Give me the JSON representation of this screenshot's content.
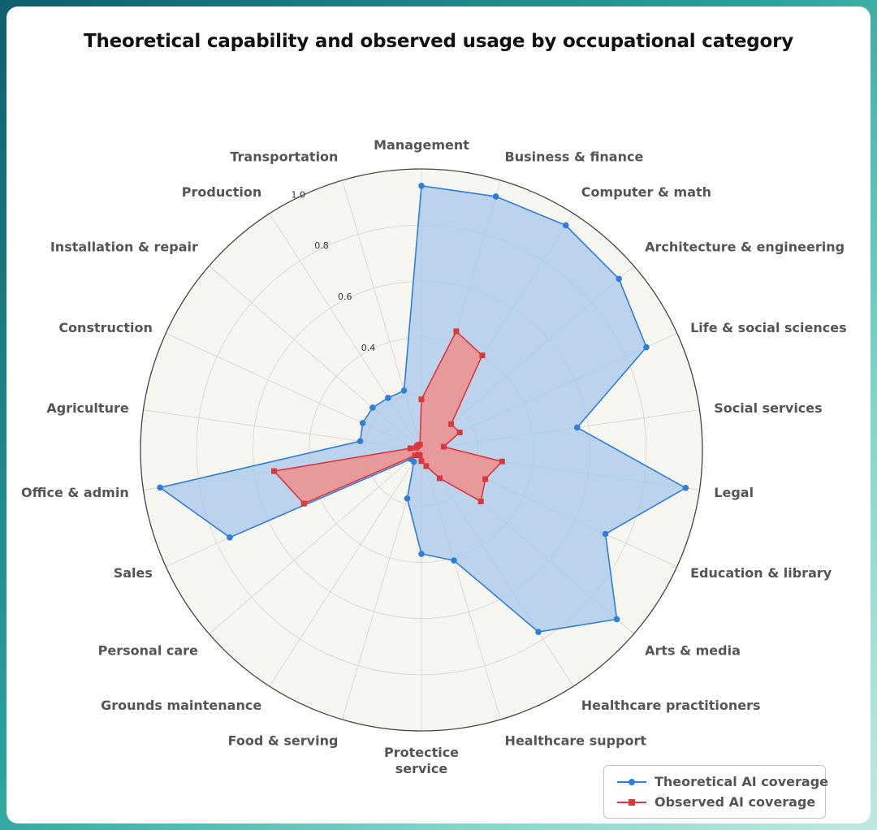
{
  "chart_data": {
    "type": "radar",
    "title": "Theoretical capability and observed usage by occupational category",
    "categories": [
      "Management",
      "Business & finance",
      "Computer & math",
      "Architecture & engineering",
      "Life & social sciences",
      "Social services",
      "Legal",
      "Education & library",
      "Arts & media",
      "Healthcare practitioners",
      "Healthcare support",
      "Protecticе service",
      "Food & serving",
      "Grounds maintenance",
      "Personal care",
      "Sales",
      "Office & admin",
      "Agriculture",
      "Construction",
      "Installation & repair",
      "Production",
      "Transportation"
    ],
    "radial_ticks": [
      0.4,
      0.6,
      0.8,
      1.0
    ],
    "rlim": [
      0,
      1.0
    ],
    "grid": true,
    "legend_position": "bottom-right",
    "series": [
      {
        "name": "Theoretical AI coverage",
        "color": "#2f7fd6",
        "fill": "#a9c9ea",
        "marker": "circle",
        "values": [
          0.94,
          0.94,
          0.95,
          0.93,
          0.88,
          0.56,
          0.95,
          0.72,
          0.92,
          0.77,
          0.41,
          0.37,
          0.18,
          0.05,
          0.05,
          0.75,
          0.94,
          0.22,
          0.23,
          0.23,
          0.22,
          0.22
        ]
      },
      {
        "name": "Observed AI coverage",
        "color": "#d9393e",
        "fill": "#ef8e8e",
        "marker": "square",
        "values": [
          0.18,
          0.44,
          0.4,
          0.14,
          0.15,
          0.08,
          0.29,
          0.25,
          0.28,
          0.12,
          0.06,
          0.04,
          0.02,
          0.02,
          0.03,
          0.46,
          0.53,
          0.04,
          0.02,
          0.02,
          0.02,
          0.02
        ]
      }
    ]
  }
}
